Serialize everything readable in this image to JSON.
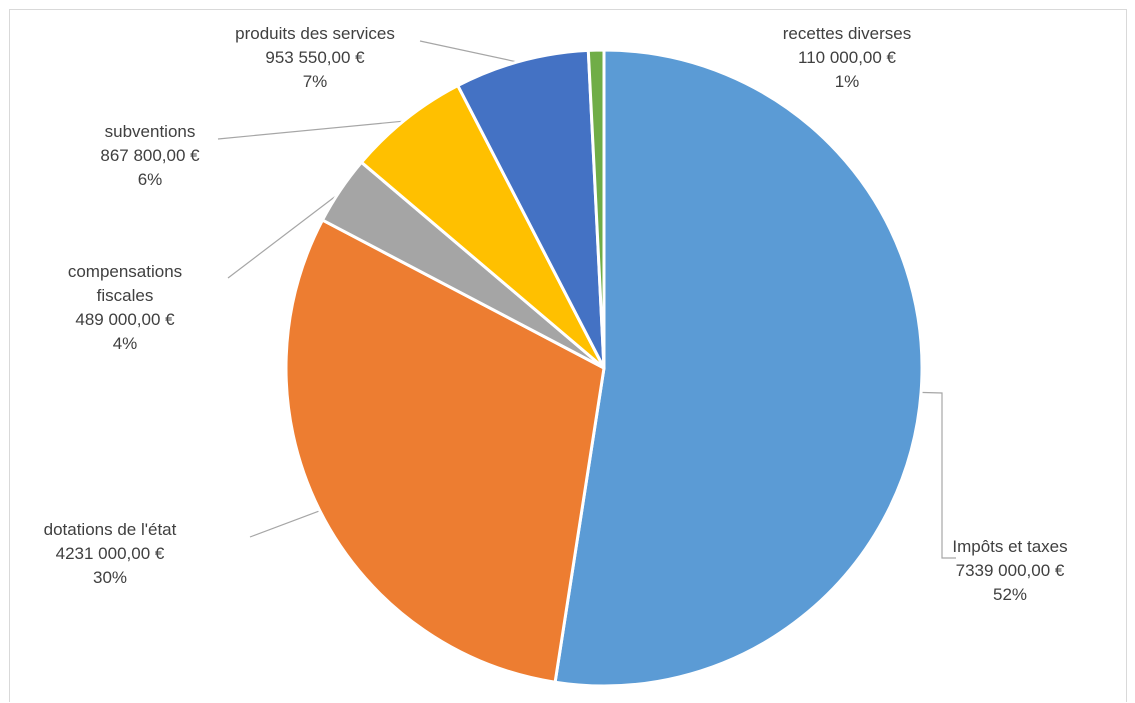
{
  "chart_data": {
    "type": "pie",
    "title": "",
    "start_angle_deg": 0,
    "direction": "clockwise",
    "legend": "none",
    "slices": [
      {
        "label": "Impôts et taxes",
        "value": 7339000,
        "value_text": "7339 000,00 €",
        "percent_text": "52%",
        "color": "#5b9bd5"
      },
      {
        "label": "dotations de l'état",
        "value": 4231000,
        "value_text": "4231 000,00 €",
        "percent_text": "30%",
        "color": "#ed7d31"
      },
      {
        "label": "compensations fiscales",
        "label_lines": [
          "compensations",
          "fiscales"
        ],
        "value": 489000,
        "value_text": "489 000,00 €",
        "percent_text": "4%",
        "color": "#a5a5a5"
      },
      {
        "label": "subventions",
        "value": 867800,
        "value_text": "867 800,00 €",
        "percent_text": "6%",
        "color": "#ffc000"
      },
      {
        "label": "produits des services",
        "value": 953550,
        "value_text": "953 550,00 €",
        "percent_text": "7%",
        "color": "#4472c4"
      },
      {
        "label": "recettes diverses",
        "value": 110000,
        "value_text": "110 000,00 €",
        "percent_text": "1%",
        "color": "#70ad47"
      }
    ]
  }
}
